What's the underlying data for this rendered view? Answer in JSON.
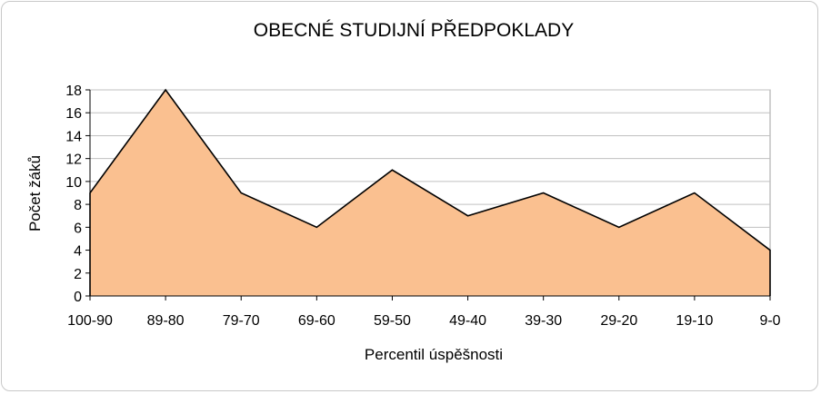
{
  "chart_data": {
    "type": "area",
    "title": "OBECNÉ STUDIJNÍ PŘEDPOKLADY",
    "xlabel": "Percentil úspěšnosti",
    "ylabel": "Počet žáků",
    "categories": [
      "100-90",
      "89-80",
      "79-70",
      "69-60",
      "59-50",
      "49-40",
      "39-30",
      "29-20",
      "19-10",
      "9-0"
    ],
    "values": [
      9,
      18,
      9,
      6,
      11,
      7,
      9,
      6,
      9,
      4
    ],
    "ylim": [
      0,
      18
    ],
    "yticks": [
      0,
      2,
      4,
      6,
      8,
      10,
      12,
      14,
      16,
      18
    ],
    "grid": true,
    "legend": "none",
    "colors": {
      "fill": "#FAC090",
      "line": "#000000",
      "grid": "#c0c0c0"
    }
  }
}
